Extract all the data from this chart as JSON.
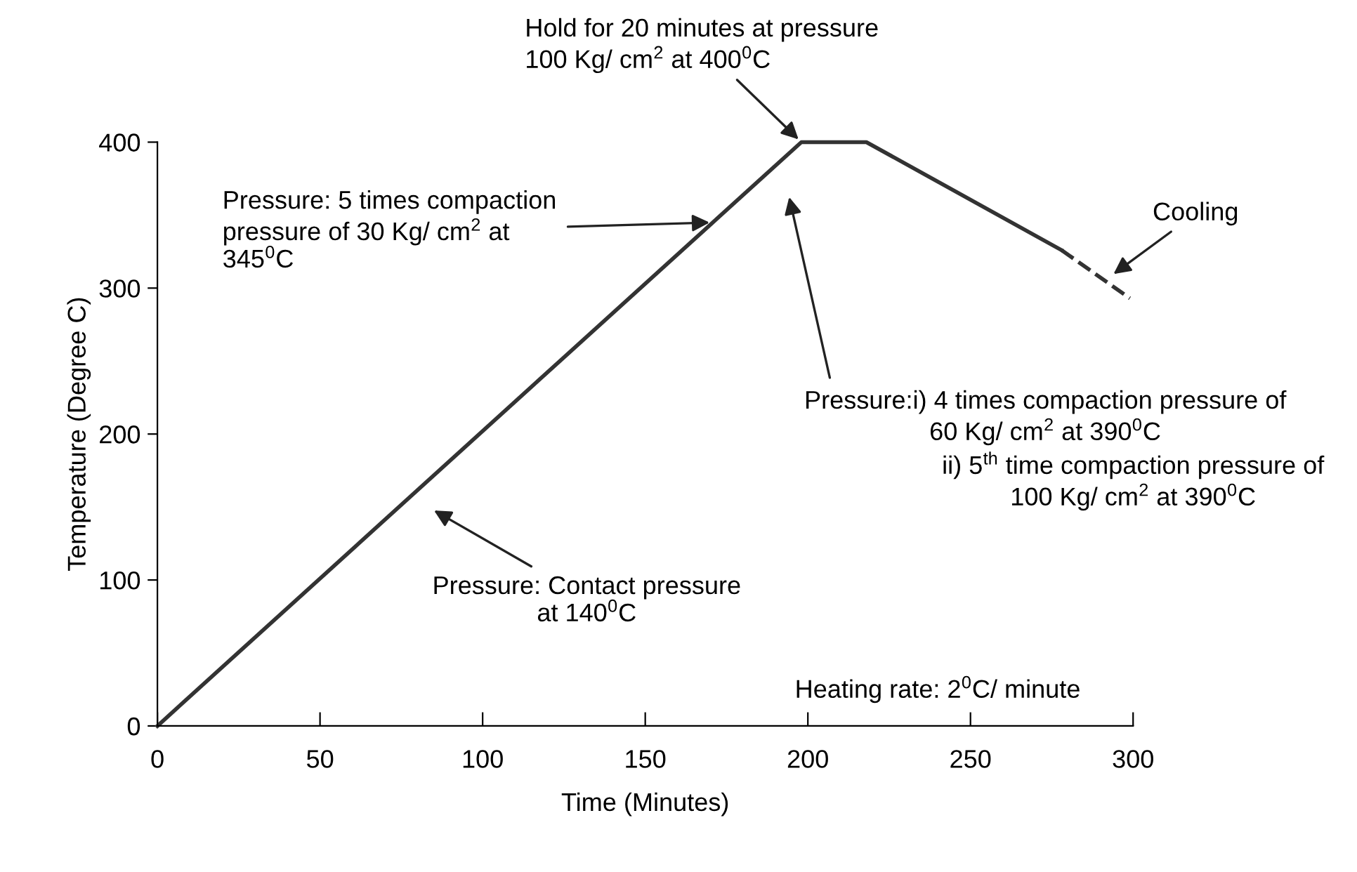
{
  "chart_data": {
    "type": "line",
    "xlabel": "Time (Minutes)",
    "ylabel": "Temperature (Degree C)",
    "xlim": [
      0,
      300
    ],
    "ylim": [
      0,
      400
    ],
    "xticks": [
      0,
      50,
      100,
      150,
      200,
      250,
      300
    ],
    "yticks": [
      0,
      100,
      200,
      300,
      400
    ],
    "grid": false,
    "marker": "none",
    "series": [
      {
        "color": "#333333",
        "line_style": "solid",
        "x": [
          0,
          198,
          218,
          278
        ],
        "values": [
          0,
          400,
          400,
          326
        ]
      },
      {
        "color": "#333333",
        "line_style": "dashed",
        "x": [
          278,
          299
        ],
        "values": [
          326,
          293
        ]
      }
    ],
    "annotations": [
      {
        "text": "Hold for 20 minutes at pressure\n100 Kg/ cm$^{2}$ at 400$^{0}$C",
        "x": 198,
        "y": 400
      },
      "Pressure: 5 times compaction\npressure of 30 Kg/ cm$^{2}$ at\n345$^{0}$C",
      "Pressure: Contact pressure\nat 140$^{0}$C",
      "Pressure:i) 4 times compaction pressure of\n60 Kg/ cm$^{2}$ at 390$^{0}$C",
      "ii) 5$^{th}$ time compaction pressure of\n100 Kg/ cm$^{2}$ at 390$^{0}$C",
      {
        "text": "Cooling",
        "x": 293,
        "y": 308
      },
      "Heating rate: 2$^{0}$C/ minute"
    ]
  }
}
